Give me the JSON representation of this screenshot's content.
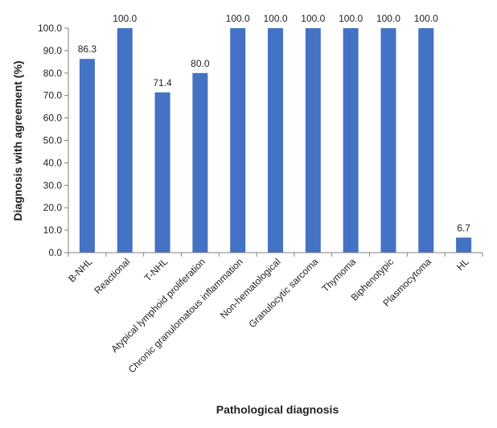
{
  "chart_data": {
    "type": "bar",
    "categories": [
      "B-NHL",
      "Reactional",
      "T-NHL",
      "Atypical lymphoid proliferation",
      "Chronic granulomatous inflammation",
      "Non-hematological",
      "Granulocytic sarcoma",
      "Thymoma",
      "Biphenotypic",
      "Plasmocytoma",
      "HL"
    ],
    "values": [
      86.3,
      100.0,
      71.4,
      80.0,
      100.0,
      100.0,
      100.0,
      100.0,
      100.0,
      100.0,
      6.7
    ],
    "data_labels": [
      "86.3",
      "100.0",
      "71.4",
      "80.0",
      "100.0",
      "100.0",
      "100.0",
      "100.0",
      "100.0",
      "100.0",
      "6.7"
    ],
    "xlabel": "Pathological diagnosis",
    "ylabel": "Diagnosis with agreement (%)",
    "ylim": [
      0,
      100
    ],
    "y_ticks": [
      "0.0",
      "10.0",
      "20.0",
      "30.0",
      "40.0",
      "50.0",
      "60.0",
      "70.0",
      "80.0",
      "90.0",
      "100.0"
    ],
    "grid": false,
    "legend": "none",
    "bar_color": "#4472C4"
  }
}
